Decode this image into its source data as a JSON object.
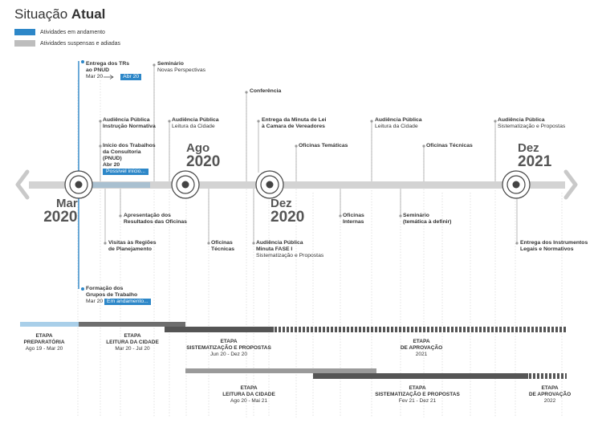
{
  "title": {
    "light": "Situação",
    "bold": "Atual"
  },
  "legend": [
    {
      "label": "Atividades em andamento",
      "color": "#2d87c8"
    },
    {
      "label": "Atividades suspensas e adiadas",
      "color": "#bdbdbd"
    }
  ],
  "milestones": {
    "mar2020": {
      "month": "Mar",
      "year": "2020"
    },
    "ago2020": {
      "month": "Ago",
      "year": "2020"
    },
    "dez2020": {
      "month": "Dez",
      "year": "2020"
    },
    "dez2021": {
      "month": "Dez",
      "year": "2021"
    }
  },
  "events": {
    "entrega_trs": {
      "title": "Entrega dos TRs\nao PNUD",
      "date_from": "Mar 20",
      "date_to": "Abr 20"
    },
    "seminario1": {
      "title": "Seminário",
      "subtitle": "Novas Perspectivas"
    },
    "conferencia": {
      "title": "Conferência"
    },
    "audiencia1": {
      "title": "Audiência Pública",
      "title2": "Instrução Normativa"
    },
    "audiencia2": {
      "title": "Audiência Pública",
      "subtitle": "Leitura da Cidade"
    },
    "minuta_lei": {
      "title": "Entrega da Minuta de Lei\nà Camara de Vereadores"
    },
    "audiencia3": {
      "title": "Audiência Pública",
      "subtitle": "Leitura da Cidade"
    },
    "audiencia4": {
      "title": "Audiência Pública",
      "subtitle": "Sistematização e Propostas"
    },
    "inicio_trabalhos": {
      "title": "Início dos Trabalhos\nda Consultoria\n(PNUD)",
      "date": "Abr 20",
      "tag": "Possível início..."
    },
    "oficinas_tematicas": {
      "title": "Oficinas Temáticas"
    },
    "oficinas_tecnicas_top": {
      "title": "Oficinas Técnicas"
    },
    "apresentacao": {
      "title": "Apresentação dos\nResultados das Oficinas"
    },
    "oficinas_tecnicas_bot": {
      "title": "Oficinas\nTécnicas"
    },
    "oficinas_internas": {
      "title": "Oficinas\nInternas"
    },
    "seminario2": {
      "title": "Seminário\n(temática à definir)"
    },
    "visitas": {
      "title": "Visitas às Regiões\nde Planejamento"
    },
    "audiencia_fase1": {
      "title": "Audiência Pública\nMinuta FASE I",
      "subtitle": "Sistematização e Propostas"
    },
    "entrega_instrumentos": {
      "title": "Entrega dos Instrumentos\nLegais e Normativos"
    },
    "formacao_grupos": {
      "title": "Formação dos\nGrupos de Trabalho",
      "date": "Mar 20",
      "tag": "Em andamento..."
    }
  },
  "stages_row1": [
    {
      "title": "ETAPA\nPREPARATÓRIA",
      "dates": "Ago 19 - Mar 20"
    },
    {
      "title": "ETAPA\nLEITURA DA CIDADE",
      "dates": "Mar 20 - Jul 20"
    },
    {
      "title": "ETAPA\nSISTEMATIZAÇÃO E PROPOSTAS",
      "dates": "Jun 20 - Dez 20"
    },
    {
      "title": "ETAPA\nDE APROVAÇÃO",
      "dates": "2021"
    }
  ],
  "stages_row2": [
    {
      "title": "ETAPA\nLEITURA DA CIDADE",
      "dates": "Ago 20 - Mai 21"
    },
    {
      "title": "ETAPA\nSISTEMATIZAÇÃO E PROPOSTAS",
      "dates": "Fev 21 - Dez 21"
    },
    {
      "title": "ETAPA\nDE APROVAÇÃO",
      "dates": "2022"
    }
  ],
  "colors": {
    "blue": "#2d87c8",
    "light_blue": "#a9cfe9",
    "gray": "#bdbdbd",
    "dark_gray": "#6e6e6e",
    "darker_gray": "#555555"
  }
}
